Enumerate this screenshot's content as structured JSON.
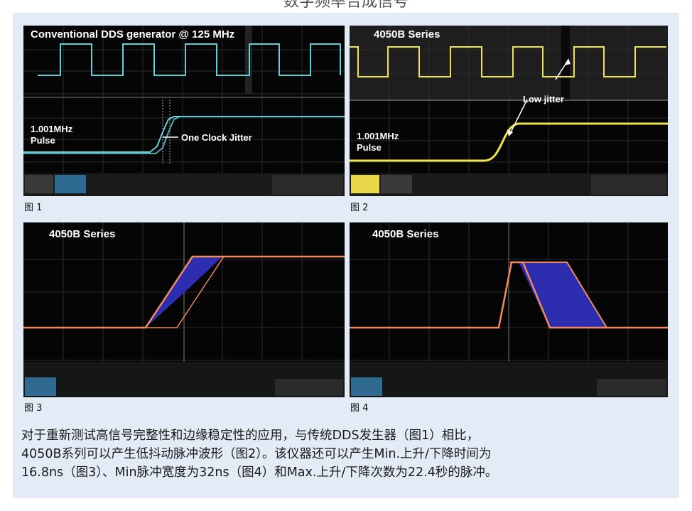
{
  "page": {
    "top_title": "数字频率合成信号"
  },
  "figures": [
    {
      "title": "Conventional DDS generator @ 125 MHz",
      "caption": "图 1",
      "annotations": {
        "freq_label": "1.001MHz",
        "pulse_label": "Pulse",
        "jitter_label": "One Clock Jitter"
      },
      "trace_color": "#5fd0d8"
    },
    {
      "title": "4050B Series",
      "caption": "图 2",
      "annotations": {
        "freq_label": "1.001MHz",
        "pulse_label": "Pulse",
        "jitter_label": "Low jitter"
      },
      "trace_color": "#f0e24a"
    },
    {
      "title": "4050B Series",
      "caption": "图 3",
      "trace_color": "#f08a5a",
      "fill_color": "#2d2db0"
    },
    {
      "title": "4050B Series",
      "caption": "图 4",
      "trace_color": "#f08a5a",
      "fill_color": "#2d2db0"
    }
  ],
  "body_text": {
    "line1": "对于重新测试高信号完整性和边缘稳定性的应用，与传统DDS发生器（图1）相比，",
    "line2": "4050B系列可以产生低抖动脉冲波形（图2）。该仪器还可以产生Min.上升/下降时间为",
    "line3": "16.8ns（图3）、Min脉冲宽度为32ns（图4）和Max.上升/下降次数为22.4秒的脉冲。"
  }
}
